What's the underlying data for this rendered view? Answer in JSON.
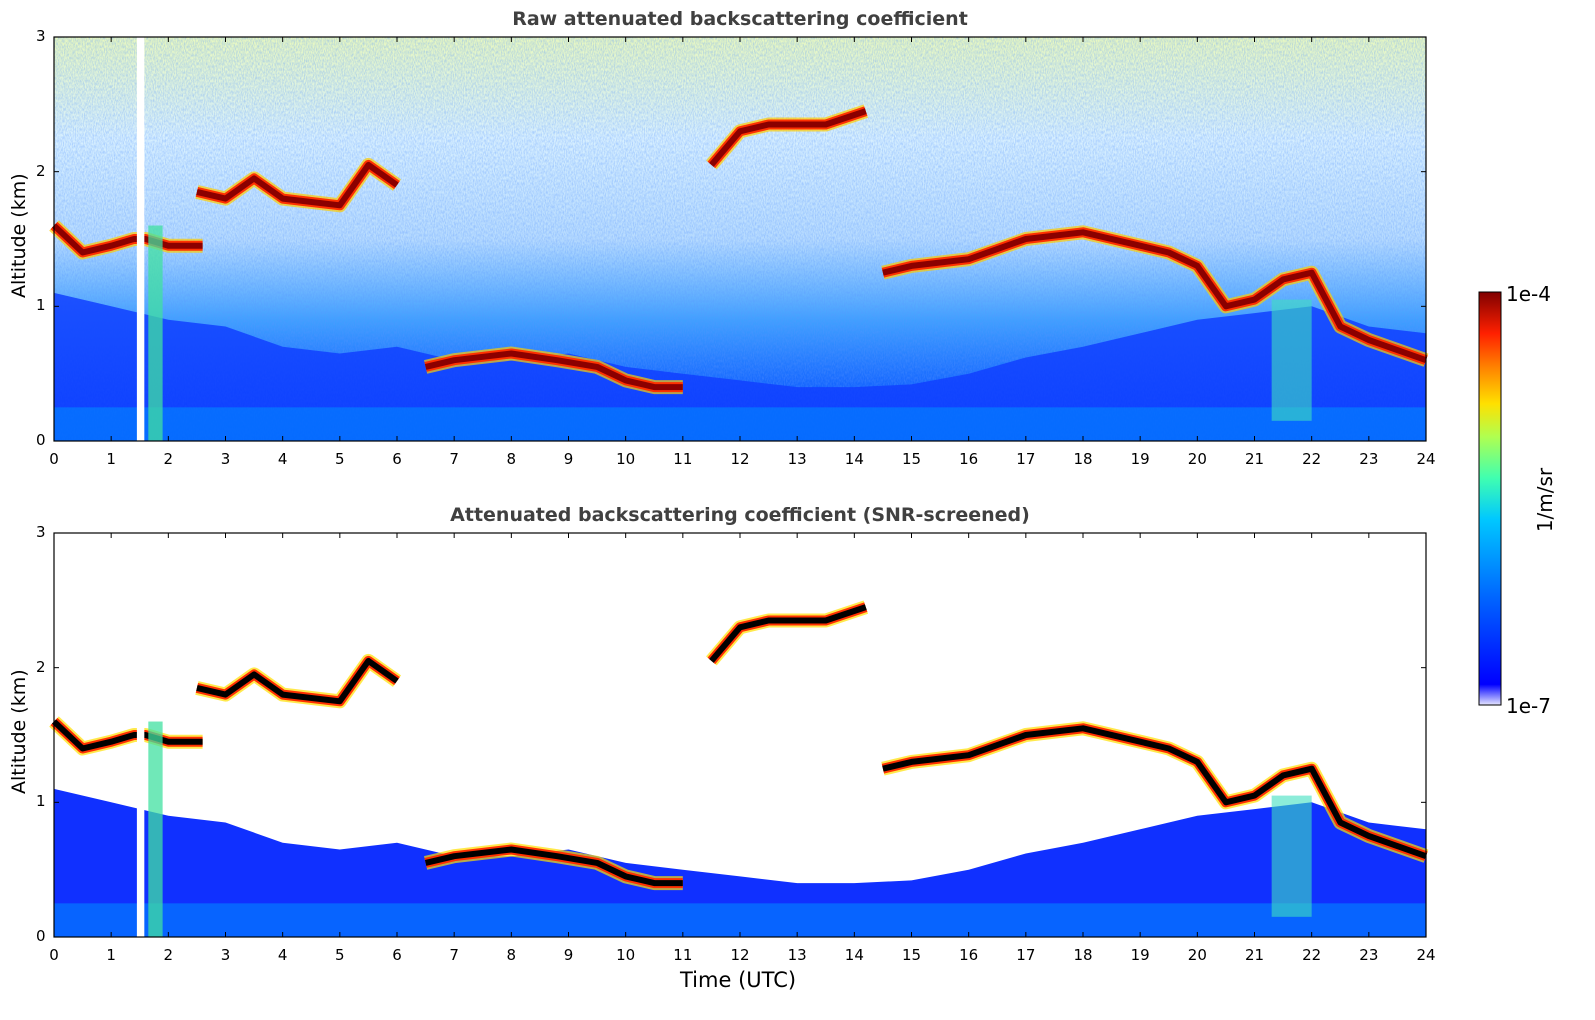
{
  "chart_data": [
    {
      "type": "heatmap",
      "title": "Raw attenuated backscattering coefficient",
      "xlabel": "",
      "ylabel": "Altitude (km)",
      "xlim": [
        0,
        24
      ],
      "ylim": [
        0,
        3
      ],
      "xticks": [
        "0",
        "1",
        "2",
        "3",
        "4",
        "5",
        "6",
        "7",
        "8",
        "9",
        "10",
        "11",
        "12",
        "13",
        "14",
        "15",
        "16",
        "17",
        "18",
        "19",
        "20",
        "21",
        "22",
        "23",
        "24"
      ],
      "yticks": [
        "0",
        "1",
        "2",
        "3"
      ],
      "layers": [
        {
          "name": "boundary",
          "x": [
            0,
            0.5,
            1,
            1.4,
            1.6,
            2,
            2.6
          ],
          "y": [
            1.6,
            1.4,
            1.45,
            1.5,
            1.5,
            1.45,
            1.45
          ]
        },
        {
          "name": "cloud",
          "x": [
            2.5,
            3,
            3.5,
            4,
            5,
            5.5,
            6
          ],
          "y": [
            1.85,
            1.8,
            1.95,
            1.8,
            1.75,
            2.05,
            1.9
          ]
        },
        {
          "name": "cloud",
          "x": [
            11.5,
            12,
            12.5,
            13,
            13.5,
            14.2
          ],
          "y": [
            2.05,
            2.3,
            2.35,
            2.35,
            2.35,
            2.45
          ]
        },
        {
          "name": "cloud",
          "x": [
            14.5,
            15,
            16,
            17,
            18,
            19,
            19.5,
            20,
            20.5,
            21,
            21.5,
            22,
            22.5,
            23,
            24
          ],
          "y": [
            1.25,
            1.3,
            1.35,
            1.5,
            1.55,
            1.45,
            1.4,
            1.3,
            1.0,
            1.05,
            1.2,
            1.25,
            0.85,
            0.75,
            0.6
          ]
        },
        {
          "name": "aerosol",
          "x": [
            6.5,
            7,
            8,
            8.8,
            9.5,
            10,
            10.5,
            11
          ],
          "y": [
            0.55,
            0.6,
            0.65,
            0.6,
            0.55,
            0.45,
            0.4,
            0.4
          ]
        }
      ],
      "colors": [
        "#ffffff",
        "#0000ff",
        "#00c8ff",
        "#b0ff50",
        "#ffe000",
        "#ff3000",
        "#800000"
      ]
    },
    {
      "type": "heatmap",
      "title": "Attenuated backscattering coefficient (SNR-screened)",
      "xlabel": "Time (UTC)",
      "ylabel": "Altitude (km)",
      "xlim": [
        0,
        24
      ],
      "ylim": [
        0,
        3
      ],
      "xticks": [
        "0",
        "1",
        "2",
        "3",
        "4",
        "5",
        "6",
        "7",
        "8",
        "9",
        "10",
        "11",
        "12",
        "13",
        "14",
        "15",
        "16",
        "17",
        "18",
        "19",
        "20",
        "21",
        "22",
        "23",
        "24"
      ],
      "yticks": [
        "0",
        "1",
        "2",
        "3"
      ],
      "colors": [
        "#ffffff",
        "#0000ff",
        "#00c8ff",
        "#b0ff50",
        "#ffe000",
        "#ff3000",
        "#000000"
      ]
    }
  ],
  "colorbar": {
    "label": "1/m/sr",
    "max_label": "1e-4",
    "min_label": "1e-7",
    "colors": [
      "#e6e6ff",
      "#0000ff",
      "#0060ff",
      "#00c8ff",
      "#40ffb0",
      "#b0ff50",
      "#ffe000",
      "#ff8000",
      "#ff2000",
      "#800000"
    ]
  }
}
